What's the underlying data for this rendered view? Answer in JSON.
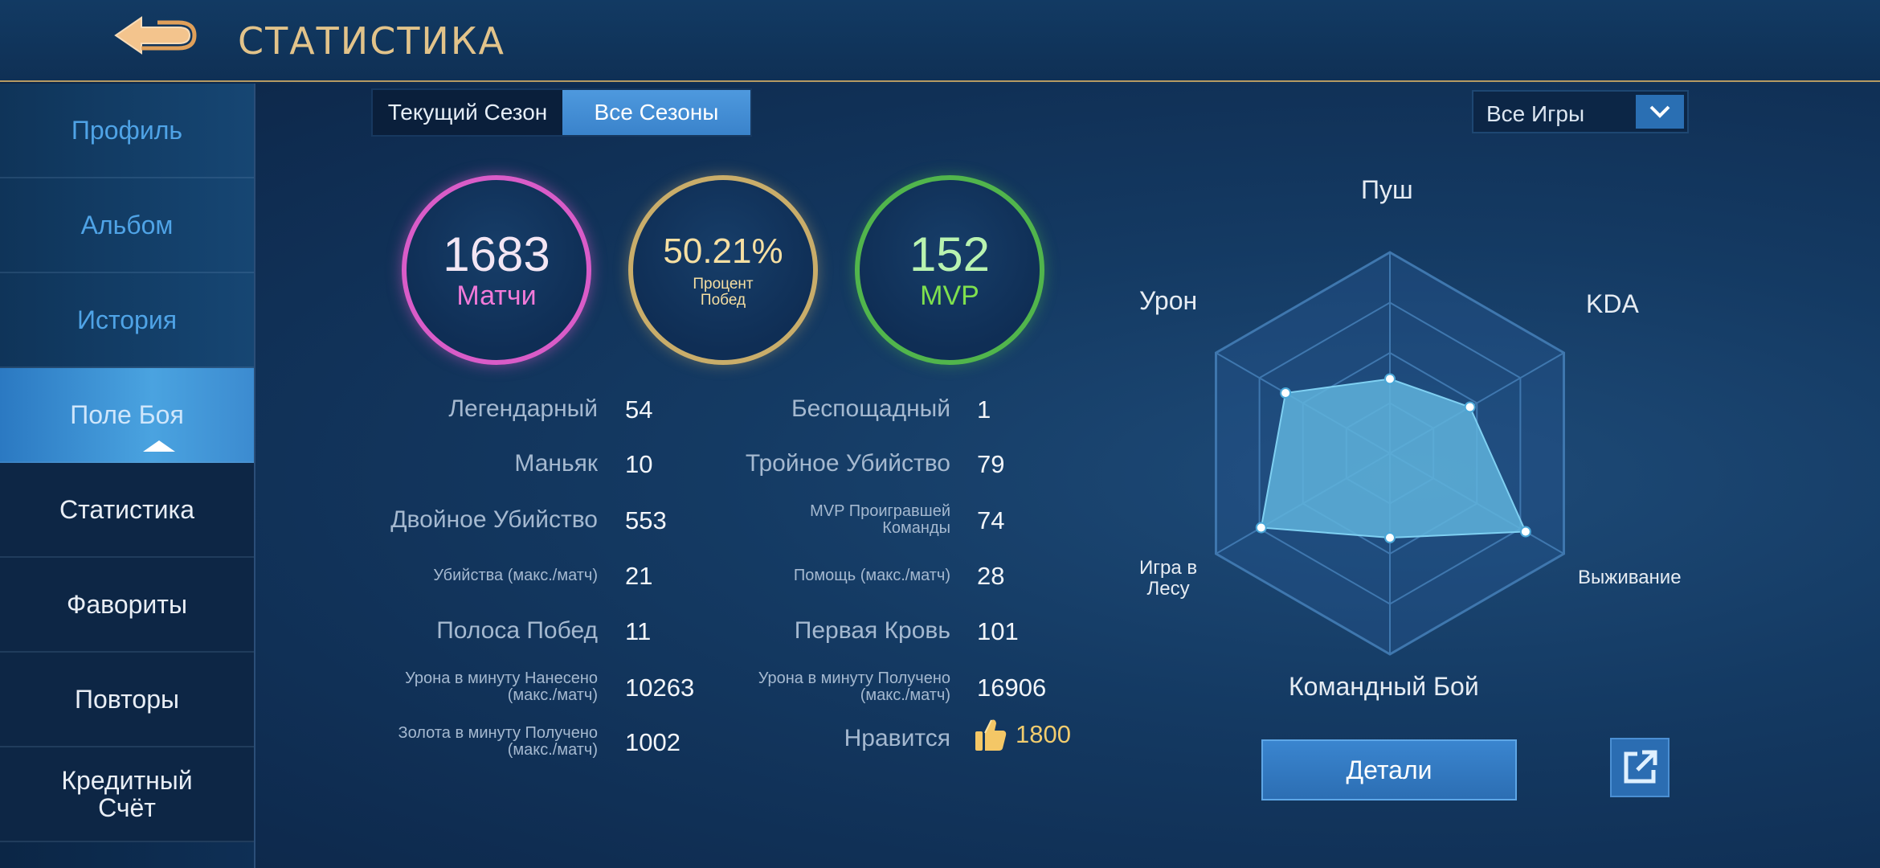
{
  "header": {
    "title": "СТАТИСТИКА"
  },
  "sidebar": {
    "items": [
      {
        "label": "Профиль"
      },
      {
        "label": "Альбом"
      },
      {
        "label": "История"
      },
      {
        "label": "Поле Боя"
      },
      {
        "label": "Статистика"
      },
      {
        "label": "Фавориты"
      },
      {
        "label": "Повторы"
      },
      {
        "label": "Кредитный\nСчёт"
      }
    ]
  },
  "tabs": {
    "current": "Текущий Сезон",
    "all": "Все Сезоны"
  },
  "filter": {
    "selected": "Все Игры"
  },
  "summary": {
    "matches": {
      "value": "1683",
      "label": "Матчи"
    },
    "winrate": {
      "value": "50.21%",
      "label": "Процент\nПобед"
    },
    "mvp": {
      "value": "152",
      "label": "MVP"
    }
  },
  "stats_left": [
    {
      "label": "Легендарный",
      "value": "54"
    },
    {
      "label": "Маньяк",
      "value": "10"
    },
    {
      "label": "Двойное Убийство",
      "value": "553"
    },
    {
      "label": "Убийства (макс./матч)",
      "value": "21"
    },
    {
      "label": "Полоса Побед",
      "value": "11"
    },
    {
      "label": "Урона в минуту Нанесено\n(макс./матч)",
      "value": "10263"
    },
    {
      "label": "Золота в минуту Получено\n(макс./матч)",
      "value": "1002"
    }
  ],
  "stats_right": [
    {
      "label": "Беспощадный",
      "value": "1"
    },
    {
      "label": "Тройное Убийство",
      "value": "79"
    },
    {
      "label": "MVP Проигравшей\nКоманды",
      "value": "74"
    },
    {
      "label": "Помощь (макс./матч)",
      "value": "28"
    },
    {
      "label": "Первая Кровь",
      "value": "101"
    },
    {
      "label": "Урона в минуту Получено\n(макс./матч)",
      "value": "16906"
    },
    {
      "label": "Нравится",
      "value": "1800"
    }
  ],
  "radar": {
    "axes": [
      {
        "label": "Пуш",
        "value": 0.37
      },
      {
        "label": "KDA",
        "value": 0.46
      },
      {
        "label": "Выживание",
        "value": 0.78
      },
      {
        "label": "Командный Бой",
        "value": 0.42
      },
      {
        "label": "Игра в\nЛесу",
        "value": 0.74
      },
      {
        "label": "Урон",
        "value": 0.6
      }
    ],
    "fill_color": "#5fb3dc"
  },
  "actions": {
    "details": "Детали"
  },
  "colors": {
    "accent_gold": "#e2c38a",
    "matches": "#d95cc8",
    "winrate": "#c9ad6a",
    "mvp": "#51b54c"
  }
}
